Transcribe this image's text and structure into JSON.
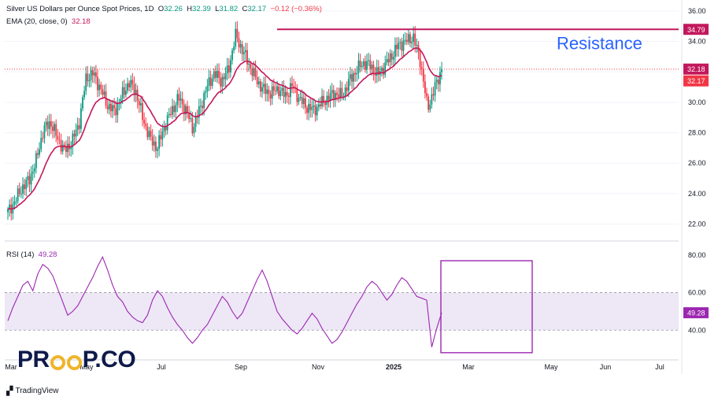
{
  "header": {
    "symbol_title": "Silver US Dollars per Ounce Spot Prices, 1D",
    "open_label": "O",
    "open": "32.26",
    "high_label": "H",
    "high": "32.39",
    "low_label": "L",
    "low": "31.82",
    "close_label": "C",
    "close": "32.17",
    "change": "−0.12 (−0.36%)",
    "ema_label": "EMA (20, close, 0)",
    "ema_value": "32.18"
  },
  "rsi_legend": {
    "label": "RSI (14)",
    "value": "49.28"
  },
  "annotation": {
    "resistance_text": "Resistance",
    "resistance_level": 34.79
  },
  "colors": {
    "up": "#089981",
    "down": "#f23645",
    "ema": "#c2185b",
    "resistance": "#c2185b",
    "resistance_text": "#2962ff",
    "rsi_line": "#9c27b0",
    "rsi_band": "#ede7f6",
    "rsi_box": "#9c27b0"
  },
  "brand": {
    "text_a": "PR",
    "text_b": "P.CO",
    "o_icon": "coin-o-icon"
  },
  "footer": {
    "logo_icon": "tradingview-icon",
    "text": "TradingView"
  },
  "chart_data": [
    {
      "type": "candlestick",
      "title": "Silver US Dollars per Ounce Spot Prices, 1D",
      "x_tick_labels": [
        "Mar",
        "May",
        "Jul",
        "Sep",
        "Nov",
        "2025",
        "Mar",
        "May",
        "Jun",
        "Jul"
      ],
      "y_tick_labels": [
        "22.00",
        "24.00",
        "26.00",
        "28.00",
        "30.00",
        "32.00",
        "34.00",
        "36.00"
      ],
      "ylim": [
        21.2,
        36.2
      ],
      "price_badges": [
        "34.79",
        "32.18",
        "32.17"
      ],
      "overlay": {
        "name": "EMA (20, close, 0)",
        "last": 32.18
      },
      "horizontal_line": {
        "label": "Resistance",
        "value": 34.79
      },
      "close_anchors": [
        [
          "Mar",
          22.8
        ],
        [
          "Mar",
          23.5
        ],
        [
          "Mar",
          24.4
        ],
        [
          "Mar",
          24.9
        ],
        [
          "Mar",
          26.2
        ],
        [
          "May",
          28.2
        ],
        [
          "May",
          28.7
        ],
        [
          "May",
          27.6
        ],
        [
          "May",
          26.8
        ],
        [
          "May",
          27.4
        ],
        [
          "May",
          28.6
        ],
        [
          "May",
          31.6
        ],
        [
          "May",
          31.9
        ],
        [
          "May",
          30.9
        ],
        [
          "Jul",
          29.8
        ],
        [
          "Jul",
          29.4
        ],
        [
          "Jul",
          30.4
        ],
        [
          "Jul",
          31.3
        ],
        [
          "Jul",
          30.7
        ],
        [
          "Jul",
          28.9
        ],
        [
          "Jul",
          27.6
        ],
        [
          "Jul",
          27.0
        ],
        [
          "Jul",
          28.4
        ],
        [
          "Jul",
          29.4
        ],
        [
          "Sep",
          30.3
        ],
        [
          "Sep",
          29.5
        ],
        [
          "Sep",
          28.3
        ],
        [
          "Sep",
          29.6
        ],
        [
          "Sep",
          31.0
        ],
        [
          "Sep",
          31.9
        ],
        [
          "Sep",
          31.4
        ],
        [
          "Sep",
          32.1
        ],
        [
          "Sep",
          34.4
        ],
        [
          "Nov",
          33.4
        ],
        [
          "Nov",
          32.4
        ],
        [
          "Nov",
          31.4
        ],
        [
          "Nov",
          30.8
        ],
        [
          "Nov",
          30.6
        ],
        [
          "Nov",
          30.9
        ],
        [
          "Nov",
          30.4
        ],
        [
          "Nov",
          31.1
        ],
        [
          "Nov",
          30.2
        ],
        [
          "Nov",
          29.7
        ],
        [
          "2025",
          29.5
        ],
        [
          "2025",
          29.9
        ],
        [
          "2025",
          30.3
        ],
        [
          "2025",
          30.6
        ],
        [
          "2025",
          30.4
        ],
        [
          "2025",
          31.4
        ],
        [
          "2025",
          32.1
        ],
        [
          "2025",
          32.6
        ],
        [
          "2025",
          32.4
        ],
        [
          "2025",
          31.8
        ],
        [
          "Mar",
          32.4
        ],
        [
          "Mar",
          33.1
        ],
        [
          "Mar",
          33.8
        ],
        [
          "Mar",
          34.0
        ],
        [
          "Mar",
          34.3
        ],
        [
          "Mar",
          32.7
        ],
        [
          "Mar",
          29.6
        ],
        [
          "Mar",
          30.9
        ],
        [
          "Mar",
          32.17
        ]
      ]
    },
    {
      "type": "line",
      "title": "RSI (14)",
      "y_tick_labels": [
        "40.00",
        "60.00",
        "80.00"
      ],
      "ylim": [
        25,
        85
      ],
      "band": [
        40,
        60
      ],
      "last": 49.28,
      "highlight_box": "Mar",
      "values": [
        45,
        52,
        58,
        64,
        66,
        61,
        70,
        75,
        73,
        69,
        62,
        55,
        48,
        50,
        53,
        58,
        63,
        68,
        74,
        79,
        72,
        64,
        58,
        55,
        50,
        47,
        45,
        44,
        48,
        56,
        61,
        58,
        52,
        47,
        43,
        40,
        36,
        33,
        36,
        40,
        43,
        48,
        53,
        58,
        55,
        50,
        46,
        49,
        55,
        61,
        67,
        72,
        66,
        58,
        50,
        46,
        43,
        40,
        38,
        41,
        45,
        49,
        46,
        41,
        37,
        33,
        35,
        39,
        44,
        49,
        54,
        58,
        63,
        66,
        64,
        60,
        56,
        59,
        64,
        68,
        66,
        62,
        58,
        57,
        56,
        31,
        41,
        49.28
      ]
    }
  ]
}
